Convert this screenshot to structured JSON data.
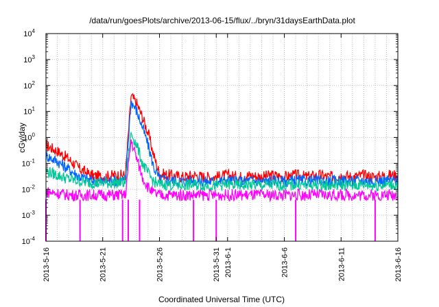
{
  "chart_data": {
    "type": "line",
    "title": "/data/run/goesPlots/archive/2013-06-15/flux/../bryn/31daysEarthData.plot",
    "xlabel": "Coordinated Universal Time (UTC)",
    "ylabel": "cGy/day",
    "y_scale": "log",
    "ylim": [
      0.0001,
      10000
    ],
    "xlim": [
      "2013-05-16",
      "2013-06-16"
    ],
    "grid": true,
    "x_ticks": [
      "2013-5-16",
      "2013-5-21",
      "2013-5-26",
      "2013-5-31",
      "2013-6-1",
      "2013-6-6",
      "2013-6-11",
      "2013-6-16"
    ],
    "x_tick_dates": [
      "2013-05-16",
      "2013-05-21",
      "2013-05-26",
      "2013-05-31",
      "2013-06-01",
      "2013-06-06",
      "2013-06-11",
      "2013-06-16"
    ],
    "y_ticks": [
      {
        "base": "10",
        "exp": "-4",
        "value": 0.0001
      },
      {
        "base": "10",
        "exp": "-3",
        "value": 0.001
      },
      {
        "base": "10",
        "exp": "-2",
        "value": 0.01
      },
      {
        "base": "10",
        "exp": "-1",
        "value": 0.1
      },
      {
        "base": "10",
        "exp": "0",
        "value": 1
      },
      {
        "base": "10",
        "exp": "1",
        "value": 10
      },
      {
        "base": "10",
        "exp": "2",
        "value": 100
      },
      {
        "base": "10",
        "exp": "3",
        "value": 1000
      },
      {
        "base": "10",
        "exp": "4",
        "value": 10000
      }
    ],
    "x": [
      "2013-05-16",
      "2013-05-17",
      "2013-05-18",
      "2013-05-19",
      "2013-05-20",
      "2013-05-21",
      "2013-05-22",
      "2013-05-23",
      "2013-05-23T12:00",
      "2013-05-24",
      "2013-05-24T12:00",
      "2013-05-25",
      "2013-05-25T12:00",
      "2013-05-26",
      "2013-05-27",
      "2013-05-28",
      "2013-05-29",
      "2013-05-30",
      "2013-05-31",
      "2013-06-01",
      "2013-06-02",
      "2013-06-03",
      "2013-06-04",
      "2013-06-05",
      "2013-06-06",
      "2013-06-07",
      "2013-06-08",
      "2013-06-09",
      "2013-06-10",
      "2013-06-11",
      "2013-06-12",
      "2013-06-13",
      "2013-06-14",
      "2013-06-15",
      "2013-06-16"
    ],
    "series": [
      {
        "color": "#ff0000",
        "values": [
          0.5,
          0.3,
          0.15,
          0.06,
          0.035,
          0.03,
          0.035,
          0.035,
          40,
          20,
          6,
          1.5,
          0.2,
          0.04,
          0.035,
          0.03,
          0.035,
          0.03,
          0.03,
          0.035,
          0.03,
          0.035,
          0.03,
          0.035,
          0.03,
          0.035,
          0.03,
          0.035,
          0.03,
          0.035,
          0.03,
          0.035,
          0.03,
          0.035,
          0.035
        ]
      },
      {
        "color": "#0066ff",
        "values": [
          0.2,
          0.12,
          0.06,
          0.03,
          0.022,
          0.02,
          0.022,
          0.022,
          25,
          10,
          2.5,
          0.5,
          0.07,
          0.025,
          0.022,
          0.02,
          0.022,
          0.02,
          0.02,
          0.022,
          0.02,
          0.022,
          0.02,
          0.022,
          0.02,
          0.022,
          0.02,
          0.022,
          0.02,
          0.022,
          0.02,
          0.022,
          0.02,
          0.022,
          0.022
        ]
      },
      {
        "color": "#00c896",
        "values": [
          0.05,
          0.035,
          0.025,
          0.02,
          0.018,
          0.017,
          0.018,
          0.018,
          1.5,
          0.5,
          0.1,
          0.04,
          0.02,
          0.015,
          0.015,
          0.014,
          0.015,
          0.014,
          0.014,
          0.015,
          0.014,
          0.015,
          0.014,
          0.015,
          0.014,
          0.015,
          0.014,
          0.015,
          0.014,
          0.015,
          0.014,
          0.015,
          0.014,
          0.015,
          0.015
        ]
      },
      {
        "color": "#ff00ff",
        "values": [
          0.008,
          0.007,
          0.006,
          0.006,
          0.006,
          0.006,
          0.006,
          0.006,
          0.8,
          0.15,
          0.03,
          0.012,
          0.007,
          0.006,
          0.006,
          0.006,
          0.006,
          0.006,
          0.006,
          0.006,
          0.006,
          0.006,
          0.006,
          0.006,
          0.006,
          0.006,
          0.006,
          0.006,
          0.006,
          0.006,
          0.006,
          0.006,
          0.006,
          0.006,
          0.006
        ]
      }
    ],
    "dropouts": [
      "2013-05-16",
      "2013-05-19",
      "2013-05-22T18:00",
      "2013-05-23T06:00",
      "2013-05-24T06:00",
      "2013-05-29",
      "2013-05-31",
      "2013-06-07",
      "2013-06-14"
    ]
  }
}
